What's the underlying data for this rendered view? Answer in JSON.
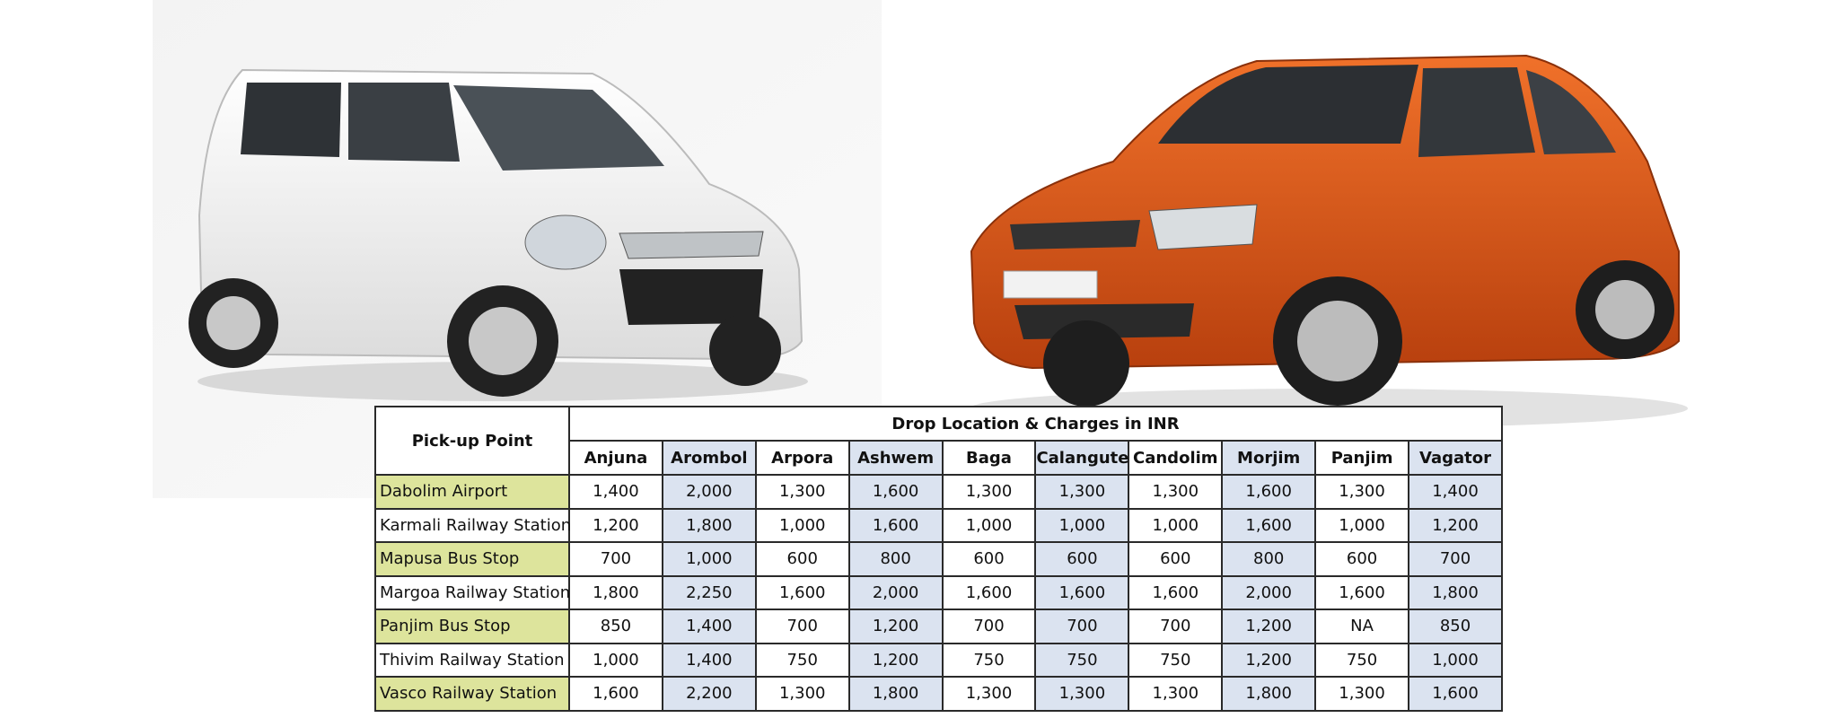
{
  "header": {
    "pickup": "Pick-up Point",
    "drop": "Drop Location & Charges in INR",
    "locations": [
      "Anjuna",
      "Arombol",
      "Arpora",
      "Ashwem",
      "Baga",
      "Calangute",
      "Candolim",
      "Morjim",
      "Panjim",
      "Vagator"
    ]
  },
  "rows": [
    {
      "pickup": "Dabolim Airport",
      "charges": [
        "1,400",
        "2,000",
        "1,300",
        "1,600",
        "1,300",
        "1,300",
        "1,300",
        "1,600",
        "1,300",
        "1,400"
      ]
    },
    {
      "pickup": "Karmali Railway Station",
      "charges": [
        "1,200",
        "1,800",
        "1,000",
        "1,600",
        "1,000",
        "1,000",
        "1,000",
        "1,600",
        "1,000",
        "1,200"
      ]
    },
    {
      "pickup": "Mapusa Bus Stop",
      "charges": [
        "700",
        "1,000",
        "600",
        "800",
        "600",
        "600",
        "600",
        "800",
        "600",
        "700"
      ]
    },
    {
      "pickup": "Margoa Railway Station",
      "charges": [
        "1,800",
        "2,250",
        "1,600",
        "2,000",
        "1,600",
        "1,600",
        "1,600",
        "2,000",
        "1,600",
        "1,800"
      ]
    },
    {
      "pickup": "Panjim Bus Stop",
      "charges": [
        "850",
        "1,400",
        "700",
        "1,200",
        "700",
        "700",
        "700",
        "1,200",
        "NA",
        "850"
      ]
    },
    {
      "pickup": "Thivim Railway Station",
      "charges": [
        "1,000",
        "1,400",
        "750",
        "1,200",
        "750",
        "750",
        "750",
        "1,200",
        "750",
        "1,000"
      ]
    },
    {
      "pickup": "Vasco Railway Station",
      "charges": [
        "1,600",
        "2,200",
        "1,300",
        "1,800",
        "1,300",
        "1,300",
        "1,300",
        "1,800",
        "1,300",
        "1,600"
      ]
    }
  ]
}
